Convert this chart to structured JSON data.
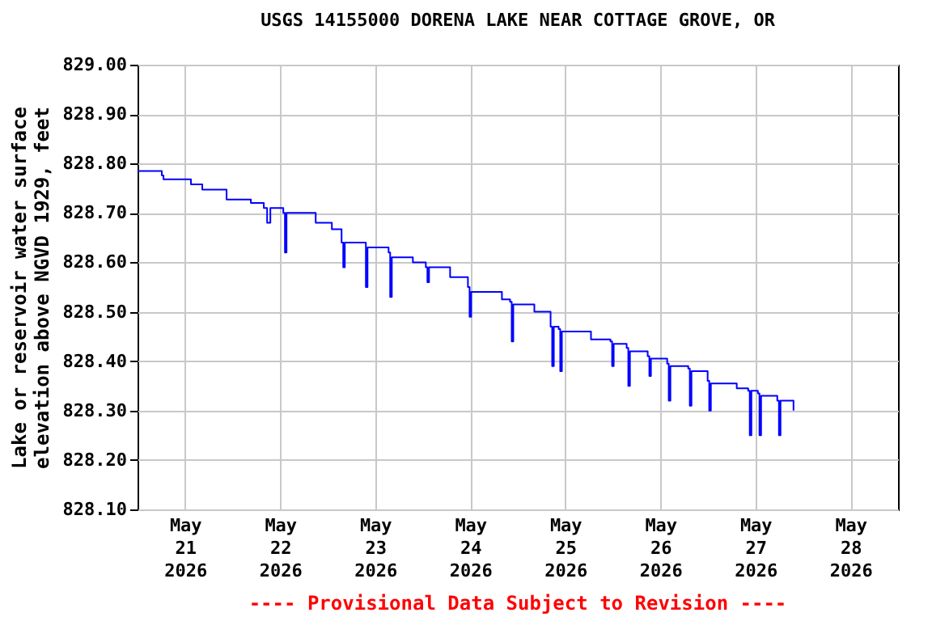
{
  "chart_data": {
    "type": "step",
    "title": "USGS 14155000 DORENA LAKE NEAR COTTAGE GROVE, OR",
    "ylabel": "Lake or reservoir water surface elevation above NGVD 1929, feet",
    "annotations": [
      "---- Provisional Data Subject to Revision ----"
    ],
    "xlim": [
      "2026-05-20T12:00",
      "2026-05-28T12:00"
    ],
    "xticks": [
      {
        "value": "2026-05-21",
        "label": "May 21 2026"
      },
      {
        "value": "2026-05-22",
        "label": "May 22 2026"
      },
      {
        "value": "2026-05-23",
        "label": "May 23 2026"
      },
      {
        "value": "2026-05-24",
        "label": "May 24 2026"
      },
      {
        "value": "2026-05-25",
        "label": "May 25 2026"
      },
      {
        "value": "2026-05-26",
        "label": "May 26 2026"
      },
      {
        "value": "2026-05-27",
        "label": "May 27 2026"
      },
      {
        "value": "2026-05-28",
        "label": "May 28 2026"
      }
    ],
    "ylim": [
      828.1,
      829.0
    ],
    "yticks": [
      {
        "value": 828.1,
        "label": "828.10"
      },
      {
        "value": 828.2,
        "label": "828.20"
      },
      {
        "value": 828.3,
        "label": "828.30"
      },
      {
        "value": 828.4,
        "label": "828.40"
      },
      {
        "value": 828.5,
        "label": "828.50"
      },
      {
        "value": 828.6,
        "label": "828.60"
      },
      {
        "value": 828.7,
        "label": "828.70"
      },
      {
        "value": 828.8,
        "label": "828.80"
      },
      {
        "value": 828.9,
        "label": "828.90"
      },
      {
        "value": 829.0,
        "label": "829.00"
      }
    ],
    "grid": true,
    "series": [
      {
        "color": "#0000ff",
        "x": [
          "2026-05-20T12:00",
          "2026-05-20T18:08",
          "2026-05-20T18:33",
          "2026-05-21T01:05",
          "2026-05-21T01:29",
          "2026-05-21T04:21",
          "2026-05-21T10:29",
          "2026-05-21T16:37",
          "2026-05-21T19:53",
          "2026-05-21T20:43",
          "2026-05-21T21:32",
          "2026-05-22T00:48",
          "2026-05-22T01:13",
          "2026-05-22T01:37",
          "2026-05-22T08:59",
          "2026-05-22T13:04",
          "2026-05-22T15:31",
          "2026-05-22T15:56",
          "2026-05-22T16:20",
          "2026-05-22T21:15",
          "2026-05-22T21:39",
          "2026-05-22T22:04",
          "2026-05-23T03:23",
          "2026-05-23T03:47",
          "2026-05-23T04:12",
          "2026-05-23T09:31",
          "2026-05-23T12:47",
          "2026-05-23T13:11",
          "2026-05-23T13:36",
          "2026-05-23T18:55",
          "2026-05-23T23:25",
          "2026-05-23T23:50",
          "2026-05-24T00:14",
          "2026-05-24T08:00",
          "2026-05-24T10:03",
          "2026-05-24T10:28",
          "2026-05-24T10:52",
          "2026-05-24T16:11",
          "2026-05-24T20:17",
          "2026-05-24T20:41",
          "2026-05-24T21:06",
          "2026-05-24T22:19",
          "2026-05-24T22:43",
          "2026-05-24T23:08",
          "2026-05-25T06:29",
          "2026-05-25T11:24",
          "2026-05-25T11:49",
          "2026-05-25T12:13",
          "2026-05-25T15:29",
          "2026-05-25T15:54",
          "2026-05-25T16:19",
          "2026-05-25T20:48",
          "2026-05-25T21:13",
          "2026-05-25T21:37",
          "2026-05-26T01:43",
          "2026-05-26T02:07",
          "2026-05-26T02:32",
          "2026-05-26T07:02",
          "2026-05-26T07:26",
          "2026-05-26T07:51",
          "2026-05-26T11:56",
          "2026-05-26T12:20",
          "2026-05-26T12:45",
          "2026-05-26T19:17",
          "2026-05-26T22:10",
          "2026-05-26T22:34",
          "2026-05-26T22:59",
          "2026-05-27T00:37",
          "2026-05-27T01:01",
          "2026-05-27T01:26",
          "2026-05-27T05:31",
          "2026-05-27T05:56",
          "2026-05-27T06:20",
          "2026-05-27T08:47",
          "2026-05-27T09:37"
        ],
        "values": [
          828.785,
          828.776,
          828.768,
          828.768,
          828.758,
          828.747,
          828.727,
          828.72,
          828.71,
          828.68,
          828.71,
          828.7,
          828.62,
          828.7,
          828.68,
          828.667,
          828.64,
          828.59,
          828.64,
          828.64,
          828.55,
          828.63,
          828.62,
          828.53,
          828.61,
          828.6,
          828.59,
          828.56,
          828.59,
          828.57,
          828.55,
          828.49,
          828.54,
          828.525,
          828.52,
          828.44,
          828.515,
          828.5,
          828.47,
          828.39,
          828.47,
          828.465,
          828.38,
          828.46,
          828.444,
          828.44,
          828.39,
          828.435,
          828.427,
          828.35,
          828.42,
          828.41,
          828.37,
          828.405,
          828.395,
          828.32,
          828.39,
          828.385,
          828.31,
          828.38,
          828.36,
          828.3,
          828.355,
          828.345,
          828.34,
          828.25,
          828.34,
          828.335,
          828.25,
          828.33,
          828.32,
          828.25,
          828.32,
          828.32,
          828.3
        ]
      }
    ]
  }
}
